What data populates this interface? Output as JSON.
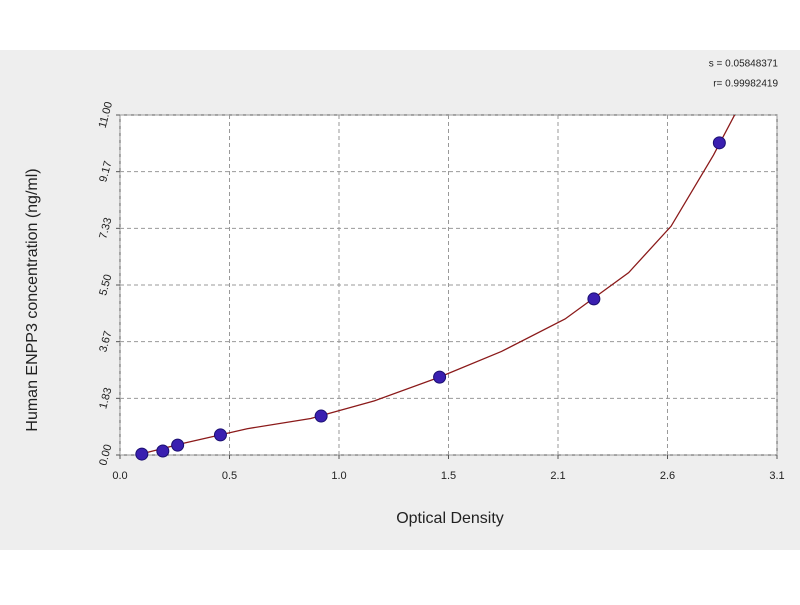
{
  "chart_data": {
    "type": "scatter",
    "xlabel": "Optical Density",
    "ylabel": "Human ENPP3 concentration (ng/ml)",
    "annotations": [
      "s = 0.05848371",
      "r= 0.99982419"
    ],
    "xlim": [
      0,
      3.1
    ],
    "xticks": [
      {
        "value": 0,
        "label": "0.0"
      },
      {
        "value": 0.5167,
        "label": "0.5"
      },
      {
        "value": 1.0333,
        "label": "1.0"
      },
      {
        "value": 1.55,
        "label": "1.5"
      },
      {
        "value": 2.0667,
        "label": "2.1"
      },
      {
        "value": 2.5833,
        "label": "2.6"
      },
      3.1
    ],
    "ylim": [
      0,
      11
    ],
    "yticks": [
      {
        "value": 0,
        "label": "0.00"
      },
      {
        "value": 1.8333,
        "label": "1.83"
      },
      {
        "value": 3.6667,
        "label": "3.67"
      },
      {
        "value": 5.5,
        "label": "5.50"
      },
      {
        "value": 7.3333,
        "label": "7.33"
      },
      {
        "value": 9.1667,
        "label": "9.17"
      },
      {
        "value": 11,
        "label": "11.00"
      }
    ],
    "grid": true,
    "series": [
      {
        "type": "scatter",
        "color": "#3a1fb0",
        "x": [
          0.103,
          0.202,
          0.272,
          0.474,
          0.949,
          1.508,
          2.236,
          2.828
        ],
        "values": [
          0.03,
          0.13,
          0.32,
          0.65,
          1.26,
          2.52,
          5.05,
          10.1
        ]
      },
      {
        "type": "line",
        "color": "#8b1a1a",
        "x": [
          0.08,
          0.3,
          0.6,
          0.9,
          1.2,
          1.5,
          1.8,
          2.1,
          2.4,
          2.6,
          2.8,
          2.9
        ],
        "values": [
          0.0,
          0.38,
          0.85,
          1.18,
          1.75,
          2.5,
          3.35,
          4.4,
          5.9,
          7.4,
          9.7,
          11.0
        ]
      }
    ]
  }
}
